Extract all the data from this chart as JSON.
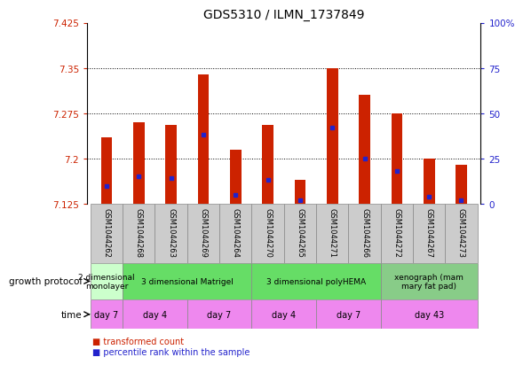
{
  "title": "GDS5310 / ILMN_1737849",
  "samples": [
    "GSM1044262",
    "GSM1044268",
    "GSM1044263",
    "GSM1044269",
    "GSM1044264",
    "GSM1044270",
    "GSM1044265",
    "GSM1044271",
    "GSM1044266",
    "GSM1044272",
    "GSM1044267",
    "GSM1044273"
  ],
  "transformed_counts": [
    7.235,
    7.26,
    7.255,
    7.34,
    7.215,
    7.255,
    7.165,
    7.35,
    7.305,
    7.275,
    7.2,
    7.19
  ],
  "percentile_ranks": [
    10,
    15,
    14,
    38,
    5,
    13,
    2,
    42,
    25,
    18,
    4,
    2
  ],
  "ymin": 7.125,
  "ymax": 7.425,
  "yticks": [
    7.125,
    7.2,
    7.275,
    7.35,
    7.425
  ],
  "right_yticks": [
    0,
    25,
    50,
    75,
    100
  ],
  "bar_color": "#cc2200",
  "marker_color": "#2222cc",
  "growth_protocol_groups": [
    {
      "label": "2 dimensional\nmonolayer",
      "start": 0,
      "end": 1,
      "color": "#ccffcc"
    },
    {
      "label": "3 dimensional Matrigel",
      "start": 1,
      "end": 5,
      "color": "#66dd66"
    },
    {
      "label": "3 dimensional polyHEMA",
      "start": 5,
      "end": 9,
      "color": "#66dd66"
    },
    {
      "label": "xenograph (mam\nmary fat pad)",
      "start": 9,
      "end": 12,
      "color": "#88cc88"
    }
  ],
  "time_groups": [
    {
      "label": "day 7",
      "start": 0,
      "end": 1,
      "color": "#ee88ee"
    },
    {
      "label": "day 4",
      "start": 1,
      "end": 3,
      "color": "#ee88ee"
    },
    {
      "label": "day 7",
      "start": 3,
      "end": 5,
      "color": "#ee88ee"
    },
    {
      "label": "day 4",
      "start": 5,
      "end": 7,
      "color": "#ee88ee"
    },
    {
      "label": "day 7",
      "start": 7,
      "end": 9,
      "color": "#ee88ee"
    },
    {
      "label": "day 43",
      "start": 9,
      "end": 12,
      "color": "#ee88ee"
    }
  ],
  "row_label_growth": "growth protocol",
  "row_label_time": "time",
  "legend_red": "transformed count",
  "legend_blue": "percentile rank within the sample",
  "gsm_cell_color": "#cccccc"
}
